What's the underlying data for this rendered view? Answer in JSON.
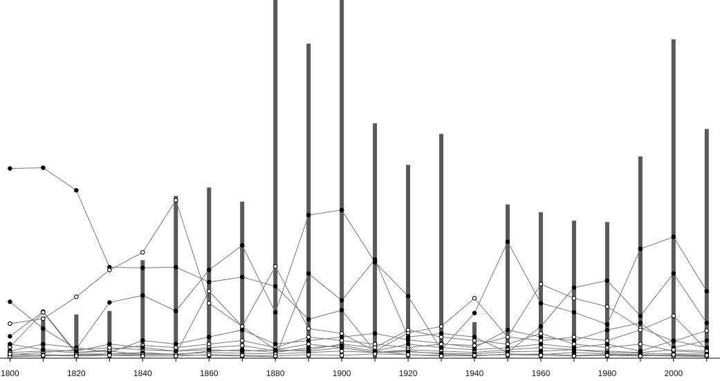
{
  "chart_data": {
    "type": "bar",
    "title": "",
    "xlabel": "",
    "ylabel": "",
    "x": [
      1800,
      1810,
      1820,
      1830,
      1840,
      1850,
      1860,
      1870,
      1880,
      1890,
      1900,
      1910,
      1920,
      1930,
      1940,
      1950,
      1960,
      1970,
      1980,
      1990,
      2000,
      2010
    ],
    "x_ticks": [
      "1800",
      "1820",
      "1840",
      "1860",
      "1880",
      "1900",
      "1920",
      "1940",
      "1960",
      "1980",
      "2000"
    ],
    "xlim": [
      1797,
      2014
    ],
    "ylim": [
      0,
      500
    ],
    "grid": false,
    "legend": "none",
    "colors": {
      "bars": "#595959",
      "lines": "#777777",
      "axis": "#000000",
      "filled_marker": "#000000",
      "open_marker": "#ffffff"
    },
    "bars": [
      21,
      59,
      62,
      67,
      139,
      230,
      242,
      222,
      508,
      446,
      510,
      333,
      274,
      318,
      51,
      218,
      207,
      195,
      193,
      286,
      452,
      325
    ],
    "series": [
      {
        "marker": "filled",
        "values": [
          0,
          0,
          0,
          0,
          0,
          0,
          0,
          0,
          0,
          0,
          0,
          0,
          0,
          0,
          0,
          0,
          0,
          0,
          0,
          0,
          0,
          0
        ]
      },
      {
        "marker": "open",
        "values": [
          0,
          0,
          0,
          0,
          0,
          0,
          0,
          0,
          0,
          0,
          0,
          0,
          0,
          0,
          0,
          0,
          0,
          0,
          0,
          0,
          0,
          0
        ]
      }
    ],
    "lines": [
      {
        "marker": "filled",
        "values": [
          269,
          270,
          238,
          129,
          128,
          129,
          108,
          115,
          102,
          55,
          68,
          10,
          5,
          4,
          3,
          6,
          5,
          8,
          6,
          5,
          4,
          3
        ]
      },
      {
        "marker": "open",
        "values": [
          49,
          56,
          87,
          125,
          150,
          224,
          78,
          45,
          12,
          20,
          15,
          8,
          10,
          6,
          4,
          5,
          6,
          4,
          5,
          4,
          3,
          2
        ]
      },
      {
        "marker": "filled",
        "values": [
          80,
          42,
          13,
          79,
          89,
          67,
          125,
          160,
          65,
          203,
          210,
          136,
          88,
          12,
          64,
          165,
          78,
          65,
          48,
          155,
          172,
          95
        ]
      },
      {
        "marker": "filled",
        "values": [
          31,
          66,
          8,
          10,
          5,
          5,
          4,
          3,
          2,
          120,
          82,
          140,
          30,
          35,
          30,
          8,
          45,
          100,
          110,
          60,
          120,
          50
        ]
      },
      {
        "marker": "open",
        "values": [
          16,
          65,
          6,
          6,
          6,
          6,
          95,
          45,
          130,
          42,
          35,
          10,
          36,
          45,
          85,
          30,
          105,
          85,
          73,
          43,
          24,
          39
        ]
      },
      {
        "marker": "filled",
        "values": [
          10,
          20,
          15,
          8,
          25,
          20,
          30,
          40,
          20,
          25,
          30,
          35,
          26,
          21,
          15,
          40,
          30,
          25,
          40,
          50,
          15,
          25
        ]
      },
      {
        "marker": "open",
        "values": [
          8,
          10,
          8,
          12,
          18,
          15,
          20,
          25,
          15,
          30,
          25,
          20,
          15,
          20,
          18,
          30,
          25,
          30,
          25,
          40,
          60,
          12
        ]
      },
      {
        "marker": "open",
        "values": [
          5,
          8,
          12,
          15,
          12,
          10,
          15,
          18,
          10,
          12,
          20,
          15,
          40,
          30,
          25,
          20,
          35,
          20,
          15,
          20,
          10,
          8
        ]
      },
      {
        "marker": "filled",
        "values": [
          3,
          5,
          4,
          6,
          8,
          5,
          10,
          12,
          8,
          15,
          18,
          10,
          20,
          15,
          12,
          15,
          20,
          15,
          20,
          10,
          25,
          15
        ]
      },
      {
        "marker": "open",
        "values": [
          2,
          3,
          5,
          4,
          5,
          6,
          8,
          7,
          6,
          8,
          10,
          8,
          12,
          10,
          8,
          12,
          15,
          12,
          10,
          8,
          12,
          10
        ]
      },
      {
        "marker": "filled",
        "values": [
          20,
          12,
          10,
          20,
          15,
          10,
          12,
          10,
          12,
          10,
          15,
          8,
          9,
          7,
          6,
          9,
          10,
          12,
          8,
          7,
          6,
          6
        ]
      },
      {
        "marker": "open",
        "values": [
          6,
          4,
          3,
          4,
          3,
          3,
          5,
          4,
          3,
          5,
          4,
          6,
          5,
          3,
          4,
          5,
          4,
          3,
          4,
          3,
          5,
          4
        ]
      }
    ]
  }
}
